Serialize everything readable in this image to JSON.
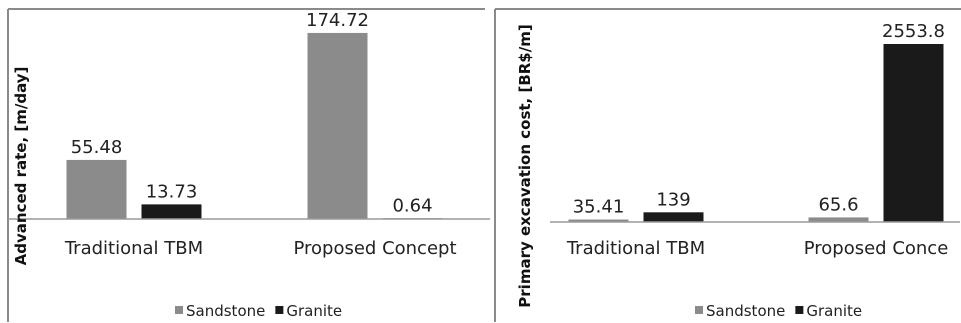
{
  "colors": {
    "sandstone": "#8b8b8b",
    "granite": "#1a1a1a",
    "axis": "#9a9a9a",
    "frame": "#8a8a8a"
  },
  "chart_data": [
    {
      "type": "bar",
      "ylabel": "Advanced rate, [m/day]",
      "categories": [
        "Traditional TBM",
        "Proposed Concept"
      ],
      "series": [
        {
          "name": "Sandstone",
          "values": [
            55.48,
            174.72
          ],
          "labels": [
            "55.48",
            "174.72"
          ]
        },
        {
          "name": "Granite",
          "values": [
            13.73,
            0.64
          ],
          "labels": [
            "13.73",
            "0.64"
          ]
        }
      ],
      "ylim": [
        0,
        185
      ],
      "grid": false,
      "legend": "bottom"
    },
    {
      "type": "bar",
      "ylabel": "Primary excavation cost, [BR$/m]",
      "categories": [
        "Traditional TBM",
        "Proposed Conce"
      ],
      "series": [
        {
          "name": "Sandstone",
          "values": [
            35.41,
            65.6
          ],
          "labels": [
            "35.41",
            "65.6"
          ]
        },
        {
          "name": "Granite",
          "values": [
            139,
            2553.8
          ],
          "labels": [
            "139",
            "2553.8"
          ]
        }
      ],
      "ylim": [
        0,
        2650
      ],
      "grid": false,
      "legend": "bottom"
    }
  ]
}
